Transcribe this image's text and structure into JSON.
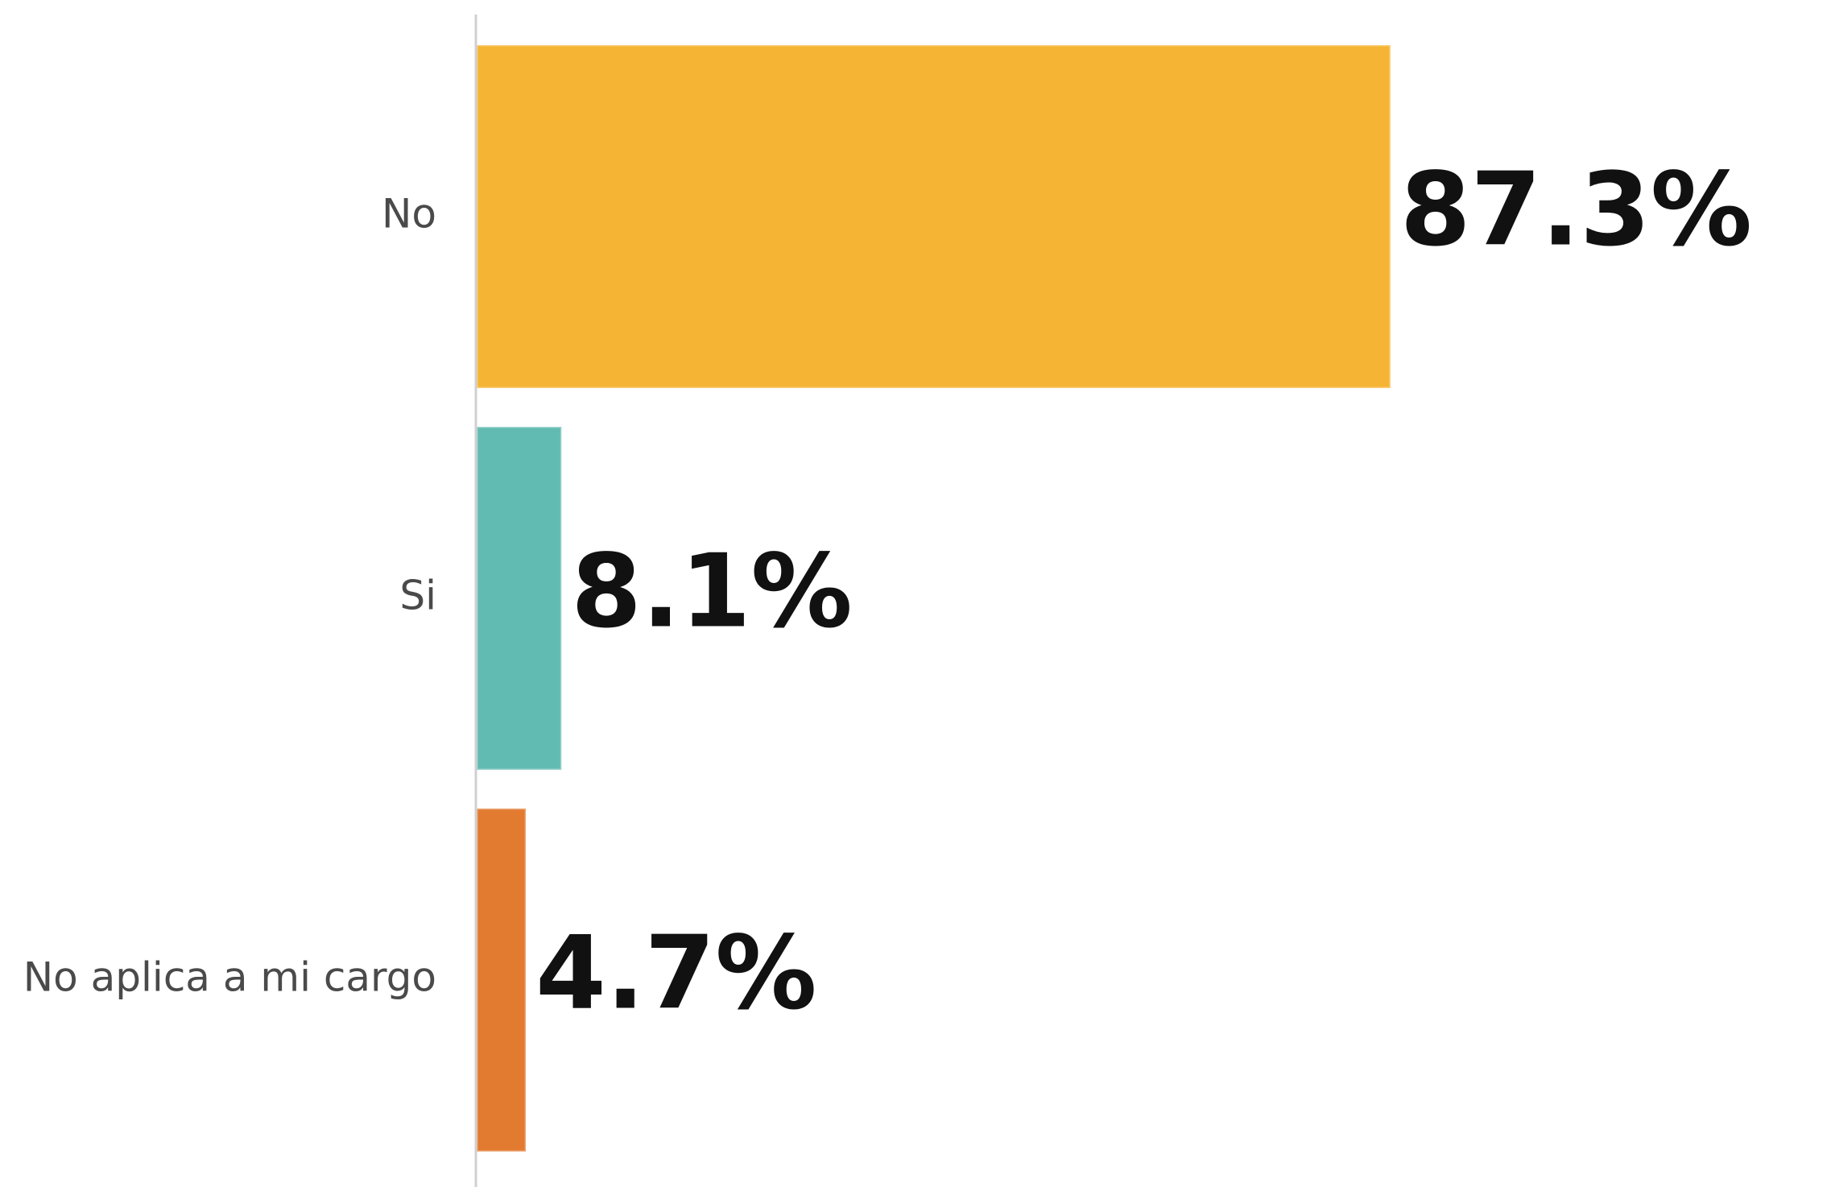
{
  "chart_data": {
    "type": "bar",
    "orientation": "horizontal",
    "categories": [
      "No",
      "Si",
      "No aplica a mi cargo"
    ],
    "values": [
      87.3,
      8.1,
      4.7
    ],
    "data_labels": [
      "87.3%",
      "8.1%",
      "4.7%"
    ],
    "colors": [
      "#F6B434",
      "#62BBB2",
      "#E27A30"
    ],
    "xlim": [
      0,
      100
    ],
    "grid": false,
    "legend": "none"
  }
}
